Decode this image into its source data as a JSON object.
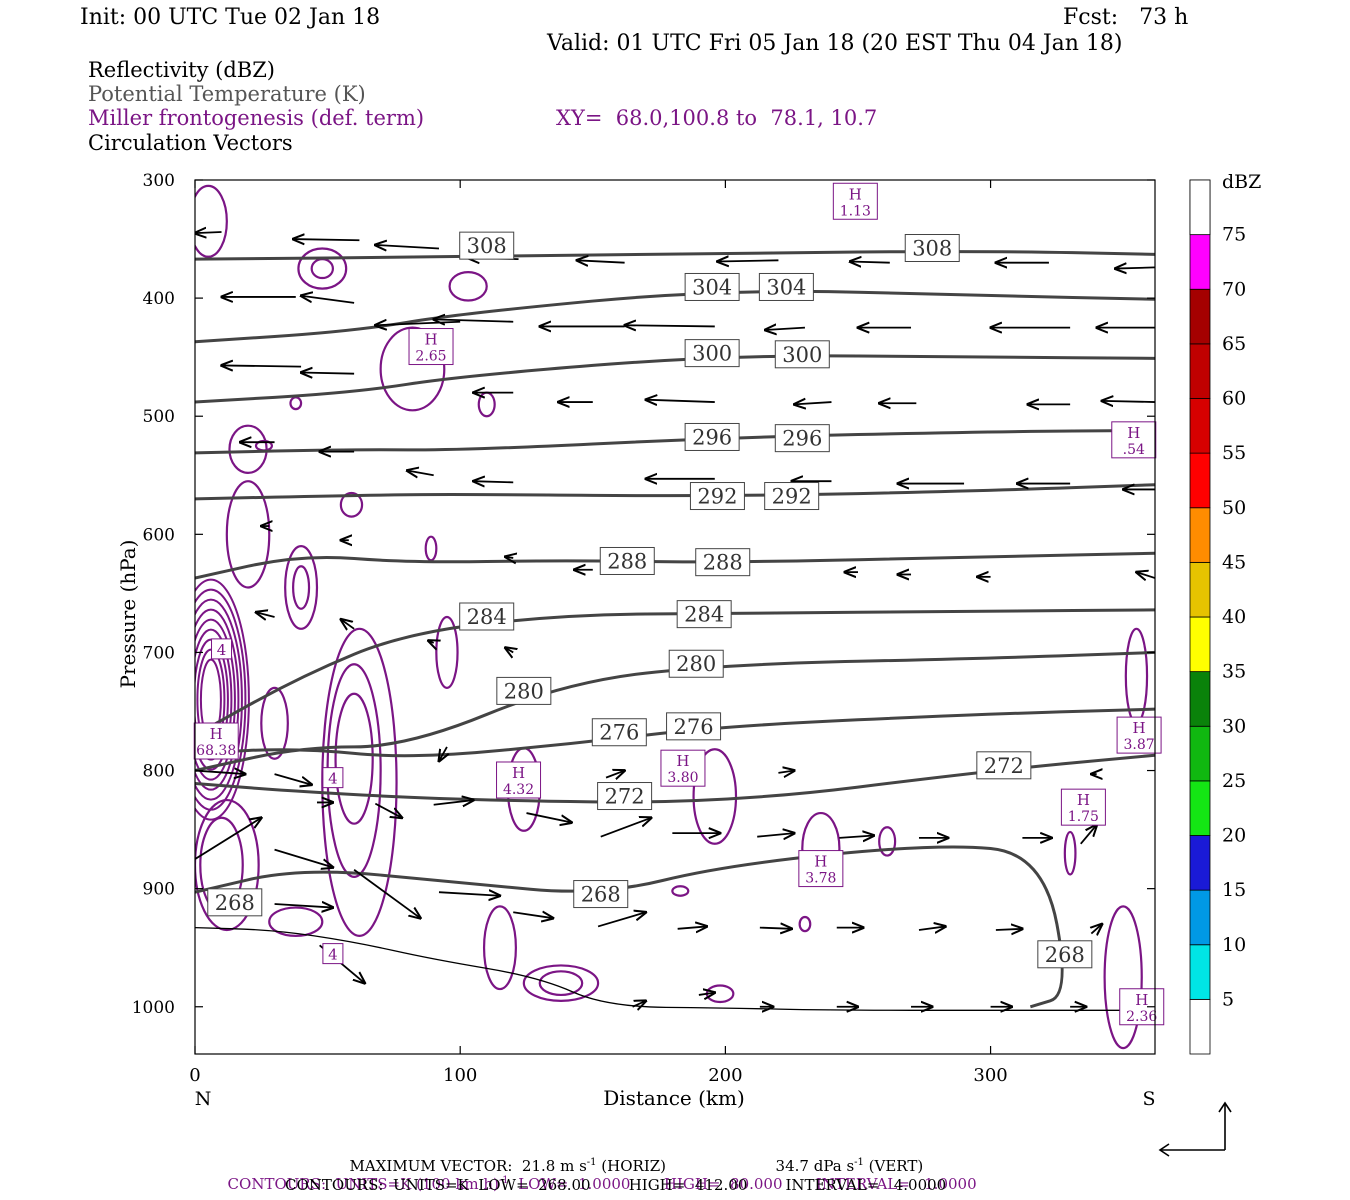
{
  "header": {
    "init": "Init: 00 UTC Tue 02 Jan 18",
    "fcst": "Fcst:   73 h",
    "valid": "Valid: 01 UTC Fri 05 Jan 18 (20 EST Thu 04 Jan 18)"
  },
  "legend": {
    "reflectivity": "Reflectivity (dBZ)",
    "theta": "Potential Temperature (K)",
    "frontogenesis": "Miller frontogenesis (def. term)",
    "xy": "XY=  68.0,100.8 to  78.1, 10.7",
    "vectors": "Circulation Vectors"
  },
  "colors": {
    "theta_line": "#444444",
    "fronto_line": "#7b1585",
    "frame": "#000000"
  },
  "chart_data": {
    "type": "cross-section",
    "xlabel": "Distance (km)",
    "ylabel": "Pressure (hPa)",
    "xlim": [
      0,
      362
    ],
    "ylim": [
      1040,
      300
    ],
    "x_ticks": [
      "0",
      "100",
      "200",
      "300"
    ],
    "x_tick_values": [
      0,
      100,
      200,
      300
    ],
    "y_ticks": [
      "300",
      "400",
      "500",
      "600",
      "700",
      "800",
      "900",
      "1000"
    ],
    "y_tick_values": [
      300,
      400,
      500,
      600,
      700,
      800,
      900,
      1000
    ],
    "left_end": "N",
    "right_end": "S",
    "theta_contours": [
      {
        "value": 308,
        "labels": [
          [
            110,
            356
          ],
          [
            278,
            358
          ]
        ],
        "points": [
          [
            0,
            367
          ],
          [
            100,
            365
          ],
          [
            200,
            362
          ],
          [
            300,
            360
          ],
          [
            362,
            363
          ]
        ]
      },
      {
        "value": 304,
        "labels": [
          [
            195,
            391
          ],
          [
            223,
            391
          ]
        ],
        "points": [
          [
            0,
            437
          ],
          [
            60,
            428
          ],
          [
            100,
            413
          ],
          [
            200,
            392
          ],
          [
            300,
            398
          ],
          [
            362,
            401
          ]
        ]
      },
      {
        "value": 300,
        "labels": [
          [
            195,
            447
          ],
          [
            229,
            448
          ]
        ],
        "points": [
          [
            0,
            488
          ],
          [
            60,
            480
          ],
          [
            100,
            466
          ],
          [
            200,
            448
          ],
          [
            300,
            450
          ],
          [
            362,
            451
          ]
        ]
      },
      {
        "value": 296,
        "labels": [
          [
            195,
            518
          ],
          [
            229,
            519
          ]
        ],
        "points": [
          [
            0,
            531
          ],
          [
            60,
            528
          ],
          [
            100,
            529
          ],
          [
            200,
            518
          ],
          [
            300,
            513
          ],
          [
            362,
            512
          ]
        ]
      },
      {
        "value": 292,
        "labels": [
          [
            197,
            568
          ],
          [
            225,
            568
          ]
        ],
        "points": [
          [
            0,
            570
          ],
          [
            60,
            567
          ],
          [
            100,
            566
          ],
          [
            200,
            568
          ],
          [
            300,
            563
          ],
          [
            362,
            558
          ]
        ]
      },
      {
        "value": 288,
        "labels": [
          [
            163,
            623
          ],
          [
            199,
            624
          ]
        ],
        "points": [
          [
            0,
            637
          ],
          [
            40,
            617
          ],
          [
            80,
            624
          ],
          [
            140,
            622
          ],
          [
            200,
            624
          ],
          [
            300,
            619
          ],
          [
            362,
            616
          ]
        ]
      },
      {
        "value": 284,
        "labels": [
          [
            110,
            670
          ],
          [
            192,
            668
          ]
        ],
        "points": [
          [
            0,
            770
          ],
          [
            40,
            720
          ],
          [
            80,
            683
          ],
          [
            140,
            668
          ],
          [
            200,
            667
          ],
          [
            300,
            665
          ],
          [
            362,
            664
          ]
        ]
      },
      {
        "value": 280,
        "labels": [
          [
            124,
            733
          ],
          [
            189,
            710
          ]
        ],
        "points": [
          [
            0,
            800
          ],
          [
            40,
            780
          ],
          [
            80,
            780
          ],
          [
            140,
            725
          ],
          [
            200,
            710
          ],
          [
            300,
            705
          ],
          [
            362,
            700
          ]
        ]
      },
      {
        "value": 276,
        "labels": [
          [
            160,
            768
          ],
          [
            188,
            763
          ]
        ],
        "points": [
          [
            0,
            785
          ],
          [
            40,
            781
          ],
          [
            80,
            790
          ],
          [
            140,
            778
          ],
          [
            200,
            762
          ],
          [
            300,
            752
          ],
          [
            362,
            748
          ]
        ]
      },
      {
        "value": 272,
        "labels": [
          [
            162,
            822
          ],
          [
            305,
            796
          ]
        ],
        "points": [
          [
            0,
            811
          ],
          [
            40,
            818
          ],
          [
            100,
            825
          ],
          [
            200,
            828
          ],
          [
            300,
            800
          ],
          [
            362,
            787
          ]
        ]
      },
      {
        "value": 268,
        "labels": [
          [
            15,
            912
          ],
          [
            153,
            905
          ],
          [
            328,
            956
          ]
        ],
        "points": [
          [
            0,
            903
          ],
          [
            40,
            882
          ],
          [
            100,
            895
          ],
          [
            153,
            906
          ],
          [
            200,
            880
          ],
          [
            280,
            862
          ],
          [
            320,
            870
          ],
          [
            330,
            990
          ],
          [
            315,
            1000
          ]
        ]
      }
    ],
    "frontogenesis_maxima": [
      {
        "label": "H",
        "value": "1.13",
        "x": 249,
        "p": 318
      },
      {
        "label": "H",
        "value": "2.65",
        "x": 89,
        "p": 441
      },
      {
        "label": "H",
        "value": ".54",
        "x": 354,
        "p": 520
      },
      {
        "label": "H",
        "value": "68.38",
        "x": 8,
        "p": 775
      },
      {
        "label": "H",
        "value": "4.32",
        "x": 122,
        "p": 808
      },
      {
        "label": "H",
        "value": "3.80",
        "x": 184,
        "p": 798
      },
      {
        "label": "H",
        "value": "1.75",
        "x": 335,
        "p": 831
      },
      {
        "label": "H",
        "value": "3.78",
        "x": 236,
        "p": 883
      },
      {
        "label": "H",
        "value": "3.87",
        "x": 356,
        "p": 770
      },
      {
        "label": "H",
        "value": "2.36",
        "x": 357,
        "p": 1000
      }
    ],
    "frontogenesis_labels": [
      {
        "value": "4",
        "x": 10,
        "p": 697
      },
      {
        "value": "4",
        "x": 52,
        "p": 806
      },
      {
        "value": "4",
        "x": 52,
        "p": 955
      }
    ],
    "frontogenesis_contours": [
      {
        "cx": 48,
        "p": 375,
        "rx": 4,
        "rp": 8
      },
      {
        "cx": 48,
        "p": 375,
        "rx": 9,
        "rp": 17
      },
      {
        "cx": 103,
        "p": 390,
        "rx": 7,
        "rp": 12
      },
      {
        "cx": 5,
        "p": 335,
        "rx": 7,
        "rp": 30
      },
      {
        "cx": 82,
        "p": 460,
        "rx": 12,
        "rp": 35
      },
      {
        "cx": 20,
        "p": 528,
        "rx": 7,
        "rp": 20
      },
      {
        "cx": 20,
        "p": 600,
        "rx": 8,
        "rp": 45
      },
      {
        "cx": 40,
        "p": 645,
        "rx": 6,
        "rp": 35
      },
      {
        "cx": 40,
        "p": 645,
        "rx": 3,
        "rp": 18
      },
      {
        "cx": 59,
        "p": 575,
        "rx": 4,
        "rp": 10
      },
      {
        "cx": 89,
        "p": 612,
        "rx": 2,
        "rp": 10
      },
      {
        "cx": 95,
        "p": 700,
        "rx": 4,
        "rp": 30
      },
      {
        "cx": 30,
        "p": 760,
        "rx": 5,
        "rp": 30
      },
      {
        "cx": 60,
        "p": 790,
        "rx": 7,
        "rp": 55
      },
      {
        "cx": 60,
        "p": 800,
        "rx": 10,
        "rp": 90
      },
      {
        "cx": 62,
        "p": 810,
        "rx": 14,
        "rp": 130
      },
      {
        "cx": 10,
        "p": 880,
        "rx": 8,
        "rp": 40
      },
      {
        "cx": 12,
        "p": 880,
        "rx": 12,
        "rp": 55
      },
      {
        "cx": 38,
        "p": 928,
        "rx": 10,
        "rp": 12
      },
      {
        "cx": 138,
        "p": 980,
        "rx": 14,
        "rp": 15
      },
      {
        "cx": 138,
        "p": 980,
        "rx": 8,
        "rp": 10
      },
      {
        "cx": 115,
        "p": 950,
        "rx": 6,
        "rp": 35
      },
      {
        "cx": 124,
        "p": 816,
        "rx": 6,
        "rp": 35
      },
      {
        "cx": 196,
        "p": 822,
        "rx": 8,
        "rp": 40
      },
      {
        "cx": 236,
        "p": 866,
        "rx": 7,
        "rp": 30
      },
      {
        "cx": 261,
        "p": 860,
        "rx": 3,
        "rp": 12
      },
      {
        "cx": 230,
        "p": 930,
        "rx": 2,
        "rp": 6
      },
      {
        "cx": 330,
        "p": 870,
        "rx": 2,
        "rp": 18
      },
      {
        "cx": 198,
        "p": 989,
        "rx": 5,
        "rp": 7
      },
      {
        "cx": 183,
        "p": 902,
        "rx": 3,
        "rp": 4
      },
      {
        "cx": 355,
        "p": 720,
        "rx": 4,
        "rp": 40
      },
      {
        "cx": 350,
        "p": 975,
        "rx": 7,
        "rp": 60
      },
      {
        "cx": 110,
        "p": 490,
        "rx": 3,
        "rp": 10
      },
      {
        "cx": 26,
        "p": 525,
        "rx": 3,
        "rp": 4
      },
      {
        "cx": 38,
        "p": 489,
        "rx": 2,
        "rp": 5
      }
    ],
    "vectors_note": "Circulation vectors in km and hPa (start point and end point)",
    "vectors": [
      [
        10,
        344,
        0,
        345
      ],
      [
        62,
        351,
        37,
        350
      ],
      [
        92,
        358,
        68,
        355
      ],
      [
        122,
        367,
        103,
        366
      ],
      [
        162,
        370,
        144,
        368
      ],
      [
        220,
        368,
        197,
        369
      ],
      [
        262,
        370,
        247,
        369
      ],
      [
        322,
        370,
        302,
        370
      ],
      [
        362,
        374,
        347,
        375
      ],
      [
        38,
        399,
        10,
        399
      ],
      [
        60,
        404,
        40,
        398
      ],
      [
        100,
        420,
        68,
        423
      ],
      [
        120,
        420,
        90,
        418
      ],
      [
        162,
        424,
        130,
        424
      ],
      [
        196,
        424,
        162,
        423
      ],
      [
        230,
        425,
        215,
        427
      ],
      [
        270,
        425,
        250,
        425
      ],
      [
        330,
        425,
        300,
        425
      ],
      [
        362,
        425,
        340,
        425
      ],
      [
        40,
        458,
        10,
        457
      ],
      [
        60,
        464,
        40,
        463
      ],
      [
        120,
        480,
        105,
        480
      ],
      [
        150,
        488,
        137,
        488
      ],
      [
        196,
        488,
        170,
        486
      ],
      [
        240,
        488,
        226,
        490
      ],
      [
        272,
        489,
        258,
        489
      ],
      [
        330,
        490,
        314,
        490
      ],
      [
        362,
        488,
        342,
        487
      ],
      [
        30,
        522,
        17,
        522
      ],
      [
        60,
        530,
        47,
        530
      ],
      [
        90,
        550,
        80,
        546
      ],
      [
        120,
        556,
        105,
        555
      ],
      [
        196,
        553,
        170,
        553
      ],
      [
        240,
        555,
        225,
        555
      ],
      [
        290,
        557,
        265,
        557
      ],
      [
        330,
        557,
        310,
        557
      ],
      [
        362,
        562,
        350,
        562
      ],
      [
        28,
        593,
        25,
        593
      ],
      [
        58,
        605,
        55,
        605
      ],
      [
        120,
        620,
        117,
        619
      ],
      [
        150,
        630,
        143,
        630
      ],
      [
        205,
        630,
        190,
        630
      ],
      [
        250,
        632,
        245,
        632
      ],
      [
        270,
        634,
        265,
        634
      ],
      [
        300,
        636,
        295,
        636
      ],
      [
        362,
        637,
        355,
        632
      ],
      [
        30,
        670,
        23,
        666
      ],
      [
        60,
        680,
        55,
        672
      ],
      [
        90,
        692,
        88,
        690
      ],
      [
        120,
        700,
        117,
        696
      ],
      [
        95,
        780,
        92,
        792
      ],
      [
        155,
        806,
        162,
        800
      ],
      [
        220,
        802,
        226,
        800
      ],
      [
        340,
        803,
        338,
        803
      ],
      [
        0,
        800,
        19,
        803
      ],
      [
        30,
        803,
        44,
        812
      ],
      [
        46,
        827,
        52,
        827
      ],
      [
        68,
        828,
        78,
        840
      ],
      [
        90,
        829,
        105,
        825
      ],
      [
        125,
        836,
        142,
        844
      ],
      [
        153,
        856,
        172,
        840
      ],
      [
        180,
        853,
        198,
        853
      ],
      [
        212,
        856,
        226,
        853
      ],
      [
        243,
        857,
        256,
        855
      ],
      [
        273,
        857,
        284,
        857
      ],
      [
        312,
        857,
        323,
        857
      ],
      [
        334,
        862,
        340,
        846
      ],
      [
        0,
        875,
        25,
        840
      ],
      [
        30,
        867,
        52,
        882
      ],
      [
        30,
        913,
        52,
        916
      ],
      [
        47,
        948,
        64,
        980
      ],
      [
        60,
        884,
        85,
        925
      ],
      [
        92,
        903,
        115,
        906
      ],
      [
        120,
        920,
        135,
        925
      ],
      [
        152,
        932,
        170,
        920
      ],
      [
        182,
        934,
        193,
        932
      ],
      [
        213,
        933,
        225,
        934
      ],
      [
        242,
        933,
        252,
        933
      ],
      [
        273,
        935,
        283,
        932
      ],
      [
        302,
        935,
        312,
        934
      ],
      [
        338,
        938,
        342,
        930
      ],
      [
        165,
        1000,
        170,
        995
      ],
      [
        190,
        990,
        196,
        988
      ],
      [
        213,
        1000,
        218,
        1000
      ],
      [
        242,
        1000,
        250,
        1000
      ],
      [
        270,
        1000,
        278,
        1000
      ],
      [
        300,
        1000,
        308,
        1000
      ],
      [
        330,
        1000,
        336,
        1000
      ],
      [
        350,
        1000,
        355,
        1000
      ]
    ],
    "surface": [
      [
        0,
        933
      ],
      [
        30,
        935
      ],
      [
        60,
        945
      ],
      [
        90,
        960
      ],
      [
        130,
        975
      ],
      [
        155,
        1000
      ],
      [
        200,
        1001
      ],
      [
        240,
        1003
      ],
      [
        300,
        1003
      ],
      [
        362,
        1003
      ]
    ],
    "colorbar": {
      "title": "dBZ",
      "labels": [
        "5",
        "10",
        "15",
        "20",
        "25",
        "30",
        "35",
        "40",
        "45",
        "50",
        "55",
        "60",
        "65",
        "70",
        "75"
      ],
      "colors": [
        "#00e5e5",
        "#0099e5",
        "#1a1ad6",
        "#14e614",
        "#10b810",
        "#0a820a",
        "#ffff00",
        "#e6c300",
        "#ff8c00",
        "#ff0000",
        "#d60000",
        "#c00000",
        "#a50000",
        "#ff00ff",
        "#9955cc"
      ]
    }
  },
  "footer": {
    "max_vector": "MAXIMUM VECTOR:  21.8 m s",
    "max_vector_exp": "-1",
    "max_vector_horiz": " (HORIZ)",
    "max_vector_vert": "34.7 dPa s",
    "max_vector_vert_exp": "-1",
    "max_vector_vert_tail": " (VERT)",
    "contours_purple": "CONTOURS:  UNITS=K (100 km h)",
    "contours_purple_exp": "-1",
    "contours_purple_tail": "  LOW=  1.0000       HIGH=  80.000       INTERVAL=   1.0000",
    "contours_gray": "CONTOURS:  UNITS=K  LOW=  268.00        HIGH=  412.00        INTERVAL=   4.0000"
  }
}
